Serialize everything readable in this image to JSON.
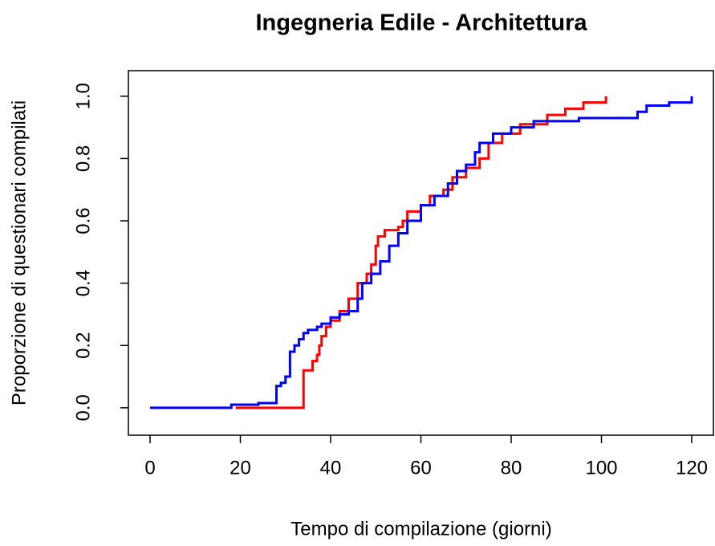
{
  "chart_data": {
    "type": "line",
    "drawstyle": "steps-post",
    "title": "Ingegneria Edile - Architettura",
    "xlabel": "Tempo di compilazione (giorni)",
    "ylabel": "Proporzione di questionari compilati",
    "xlim": [
      -4.8,
      124.8
    ],
    "ylim": [
      -0.088,
      1.082
    ],
    "xticks": [
      0,
      20,
      40,
      60,
      80,
      100,
      120
    ],
    "yticks": [
      {
        "value": 0,
        "label": "0.0"
      },
      0.2,
      0.4,
      0.6,
      0.8,
      {
        "value": 1,
        "label": "1.0"
      }
    ],
    "series": [
      {
        "color": "#ff0000",
        "x": [
          19,
          34,
          34,
          36,
          37,
          37.5,
          38,
          39,
          40,
          42,
          44,
          46,
          48,
          49,
          50,
          50.5,
          52,
          55,
          56,
          57,
          60,
          62,
          65,
          67,
          70,
          73,
          75,
          78,
          82,
          88,
          92,
          96,
          101
        ],
        "values": [
          0,
          0,
          0.12,
          0.15,
          0.17,
          0.2,
          0.23,
          0.26,
          0.28,
          0.31,
          0.35,
          0.4,
          0.43,
          0.46,
          0.52,
          0.55,
          0.57,
          0.58,
          0.6,
          0.63,
          0.65,
          0.68,
          0.7,
          0.74,
          0.77,
          0.8,
          0.85,
          0.88,
          0.91,
          0.94,
          0.96,
          0.98,
          1.0
        ]
      },
      {
        "color": "#0000ff",
        "x": [
          0,
          18,
          24,
          28,
          29,
          30,
          31,
          32,
          33,
          34,
          35,
          37,
          38,
          40,
          42,
          44,
          46,
          47,
          49,
          51,
          53,
          55,
          57,
          60,
          63,
          66,
          68,
          70,
          72,
          73,
          76,
          80,
          85,
          95,
          108,
          110,
          115,
          120
        ],
        "values": [
          0,
          0.01,
          0.015,
          0.07,
          0.08,
          0.1,
          0.18,
          0.2,
          0.22,
          0.24,
          0.25,
          0.26,
          0.27,
          0.29,
          0.3,
          0.31,
          0.35,
          0.4,
          0.43,
          0.47,
          0.52,
          0.56,
          0.6,
          0.65,
          0.68,
          0.72,
          0.76,
          0.78,
          0.82,
          0.85,
          0.88,
          0.9,
          0.92,
          0.93,
          0.95,
          0.97,
          0.98,
          1.0
        ]
      }
    ]
  }
}
